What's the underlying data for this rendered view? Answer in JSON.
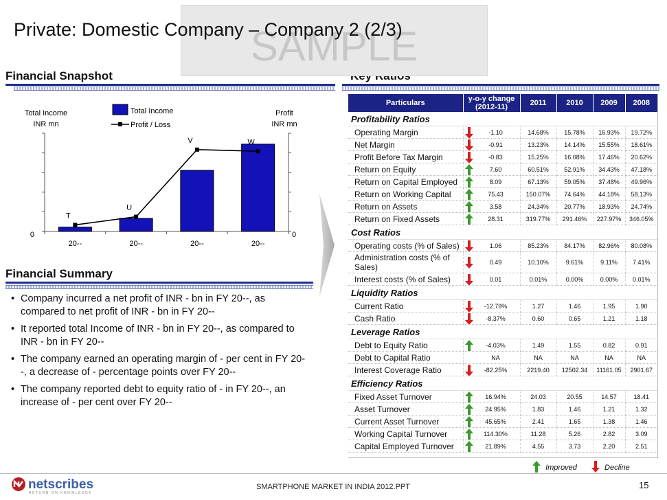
{
  "page": {
    "title": "Private: Domestic Company – Company 2 (2/3)",
    "watermark": "SAMPLE",
    "footer": "SMARTPHONE MARKET IN INDIA 2012.PPT",
    "page_number": "15",
    "logo_text": "netscribes",
    "logo_tagline": "RETURN ON KNOWLEDGE"
  },
  "snapshot": {
    "heading": "Financial Snapshot"
  },
  "chart_data": {
    "type": "bar",
    "categories": [
      "20--",
      "20--",
      "20--",
      "20--"
    ],
    "series": [
      {
        "name": "Total Income",
        "kind": "bar",
        "axis": "left",
        "values": [
          2,
          6,
          28,
          40
        ]
      },
      {
        "name": "Profit / Loss",
        "kind": "line",
        "axis": "right",
        "values": [
          4,
          9,
          50,
          49
        ]
      }
    ],
    "point_labels": [
      "T",
      "U",
      "V",
      "W"
    ],
    "left_axis_label": [
      "Total Income",
      "INR mn"
    ],
    "right_axis_label": [
      "Profit",
      "INR mn"
    ],
    "left_zero": "0",
    "right_zero": "0",
    "ylim_left": [
      0,
      45
    ],
    "ylim_right": [
      0,
      60
    ],
    "legend": [
      "Total Income",
      "Profit / Loss"
    ]
  },
  "summary": {
    "heading": "Financial Summary",
    "bullets": [
      "Company incurred a net profit of INR - bn in FY 20--, as compared to net profit of INR - bn in FY 20--",
      "It reported total Income of  INR - bn in FY 20--, as compared to INR - bn in FY 20--",
      "The company earned an operating margin of - per cent in FY 20--, a decrease of - percentage points over FY 20--",
      "The company reported debt to equity ratio of - in FY 20--, an increase of - per cent over FY 20--"
    ]
  },
  "ratios": {
    "heading": "Key Ratios",
    "columns": [
      "Particulars",
      "y-o-y change (2012-11)",
      "2011",
      "2010",
      "2009",
      "2008"
    ],
    "sections": [
      {
        "name": "Profitability Ratios",
        "rows": [
          {
            "label": "Operating Margin",
            "trend": "down",
            "yoy": "-1.10",
            "v": [
              "14.68%",
              "15.78%",
              "16.93%",
              "19.72%"
            ]
          },
          {
            "label": "Net Margin",
            "trend": "down",
            "yoy": "-0.91",
            "v": [
              "13.23%",
              "14.14%",
              "15.55%",
              "18.61%"
            ]
          },
          {
            "label": "Profit Before Tax Margin",
            "trend": "down",
            "yoy": "-0.83",
            "v": [
              "15.25%",
              "16.08%",
              "17.46%",
              "20.62%"
            ]
          },
          {
            "label": "Return on Equity",
            "trend": "up",
            "yoy": "7.60",
            "v": [
              "60.51%",
              "52.91%",
              "34.43%",
              "47.18%"
            ]
          },
          {
            "label": "Return on Capital Employed",
            "trend": "up",
            "yoy": "8.09",
            "v": [
              "67.13%",
              "59.05%",
              "37.48%",
              "49.96%"
            ]
          },
          {
            "label": "Return on Working Capital",
            "trend": "up",
            "yoy": "75.43",
            "v": [
              "150.07%",
              "74.64%",
              "44.18%",
              "58.13%"
            ]
          },
          {
            "label": "Return on Assets",
            "trend": "up",
            "yoy": "3.58",
            "v": [
              "24.34%",
              "20.77%",
              "18.93%",
              "24.74%"
            ]
          },
          {
            "label": "Return on Fixed Assets",
            "trend": "up",
            "yoy": "28.31",
            "v": [
              "319.77%",
              "291.46%",
              "227.97%",
              "346.05%"
            ]
          }
        ]
      },
      {
        "name": "Cost Ratios",
        "rows": [
          {
            "label": "Operating costs (% of Sales)",
            "trend": "down",
            "yoy": "1.06",
            "v": [
              "85.23%",
              "84.17%",
              "82.96%",
              "80.08%"
            ]
          },
          {
            "label": "Administration costs (% of Sales)",
            "trend": "down",
            "yoy": "0.49",
            "v": [
              "10.10%",
              "9.61%",
              "9.11%",
              "7.41%"
            ],
            "tall": true
          },
          {
            "label": "Interest costs (% of Sales)",
            "trend": "down",
            "yoy": "0.01",
            "v": [
              "0.01%",
              "0.00%",
              "0.00%",
              "0.01%"
            ]
          }
        ]
      },
      {
        "name": "Liquidity Ratios",
        "rows": [
          {
            "label": "Current Ratio",
            "trend": "down",
            "yoy": "-12.79%",
            "v": [
              "1.27",
              "1.46",
              "1.95",
              "1.90"
            ]
          },
          {
            "label": "Cash Ratio",
            "trend": "down",
            "yoy": "-8.37%",
            "v": [
              "0.60",
              "0.65",
              "1.21",
              "1.18"
            ]
          }
        ]
      },
      {
        "name": "Leverage Ratios",
        "rows": [
          {
            "label": "Debt to Equity Ratio",
            "trend": "up",
            "yoy": "-4.03%",
            "v": [
              "1.49",
              "1.55",
              "0.82",
              "0.91"
            ]
          },
          {
            "label": "Debt to Capital Ratio",
            "trend": "none",
            "yoy": "NA",
            "v": [
              "NA",
              "NA",
              "NA",
              "NA"
            ]
          },
          {
            "label": "Interest Coverage Ratio",
            "trend": "down",
            "yoy": "-82.25%",
            "v": [
              "2219.40",
              "12502.34",
              "11161.05",
              "2901.67"
            ]
          }
        ]
      },
      {
        "name": "Efficiency Ratios",
        "rows": [
          {
            "label": "Fixed Asset Turnover",
            "trend": "up",
            "yoy": "16.94%",
            "v": [
              "24.03",
              "20.55",
              "14.57",
              "18.41"
            ]
          },
          {
            "label": "Asset Turnover",
            "trend": "up",
            "yoy": "24.95%",
            "v": [
              "1.83",
              "1.46",
              "1.21",
              "1.32"
            ]
          },
          {
            "label": "Current Asset Turnover",
            "trend": "up",
            "yoy": "45.65%",
            "v": [
              "2.41",
              "1.65",
              "1.38",
              "1.46"
            ]
          },
          {
            "label": "Working Capital Turnover",
            "trend": "up",
            "yoy": "114.30%",
            "v": [
              "11.28",
              "5.26",
              "2.82",
              "3.09"
            ]
          },
          {
            "label": "Capital Employed Turnover",
            "trend": "up",
            "yoy": "21.89%",
            "v": [
              "4.55",
              "3.73",
              "2.20",
              "2.51"
            ]
          }
        ]
      }
    ],
    "legend_improved": "Improved",
    "legend_decline": "Decline"
  },
  "colors": {
    "navy": "#1b2384",
    "bar": "#1212b8",
    "up": "#3a9a2a",
    "down": "#d81e1e"
  }
}
